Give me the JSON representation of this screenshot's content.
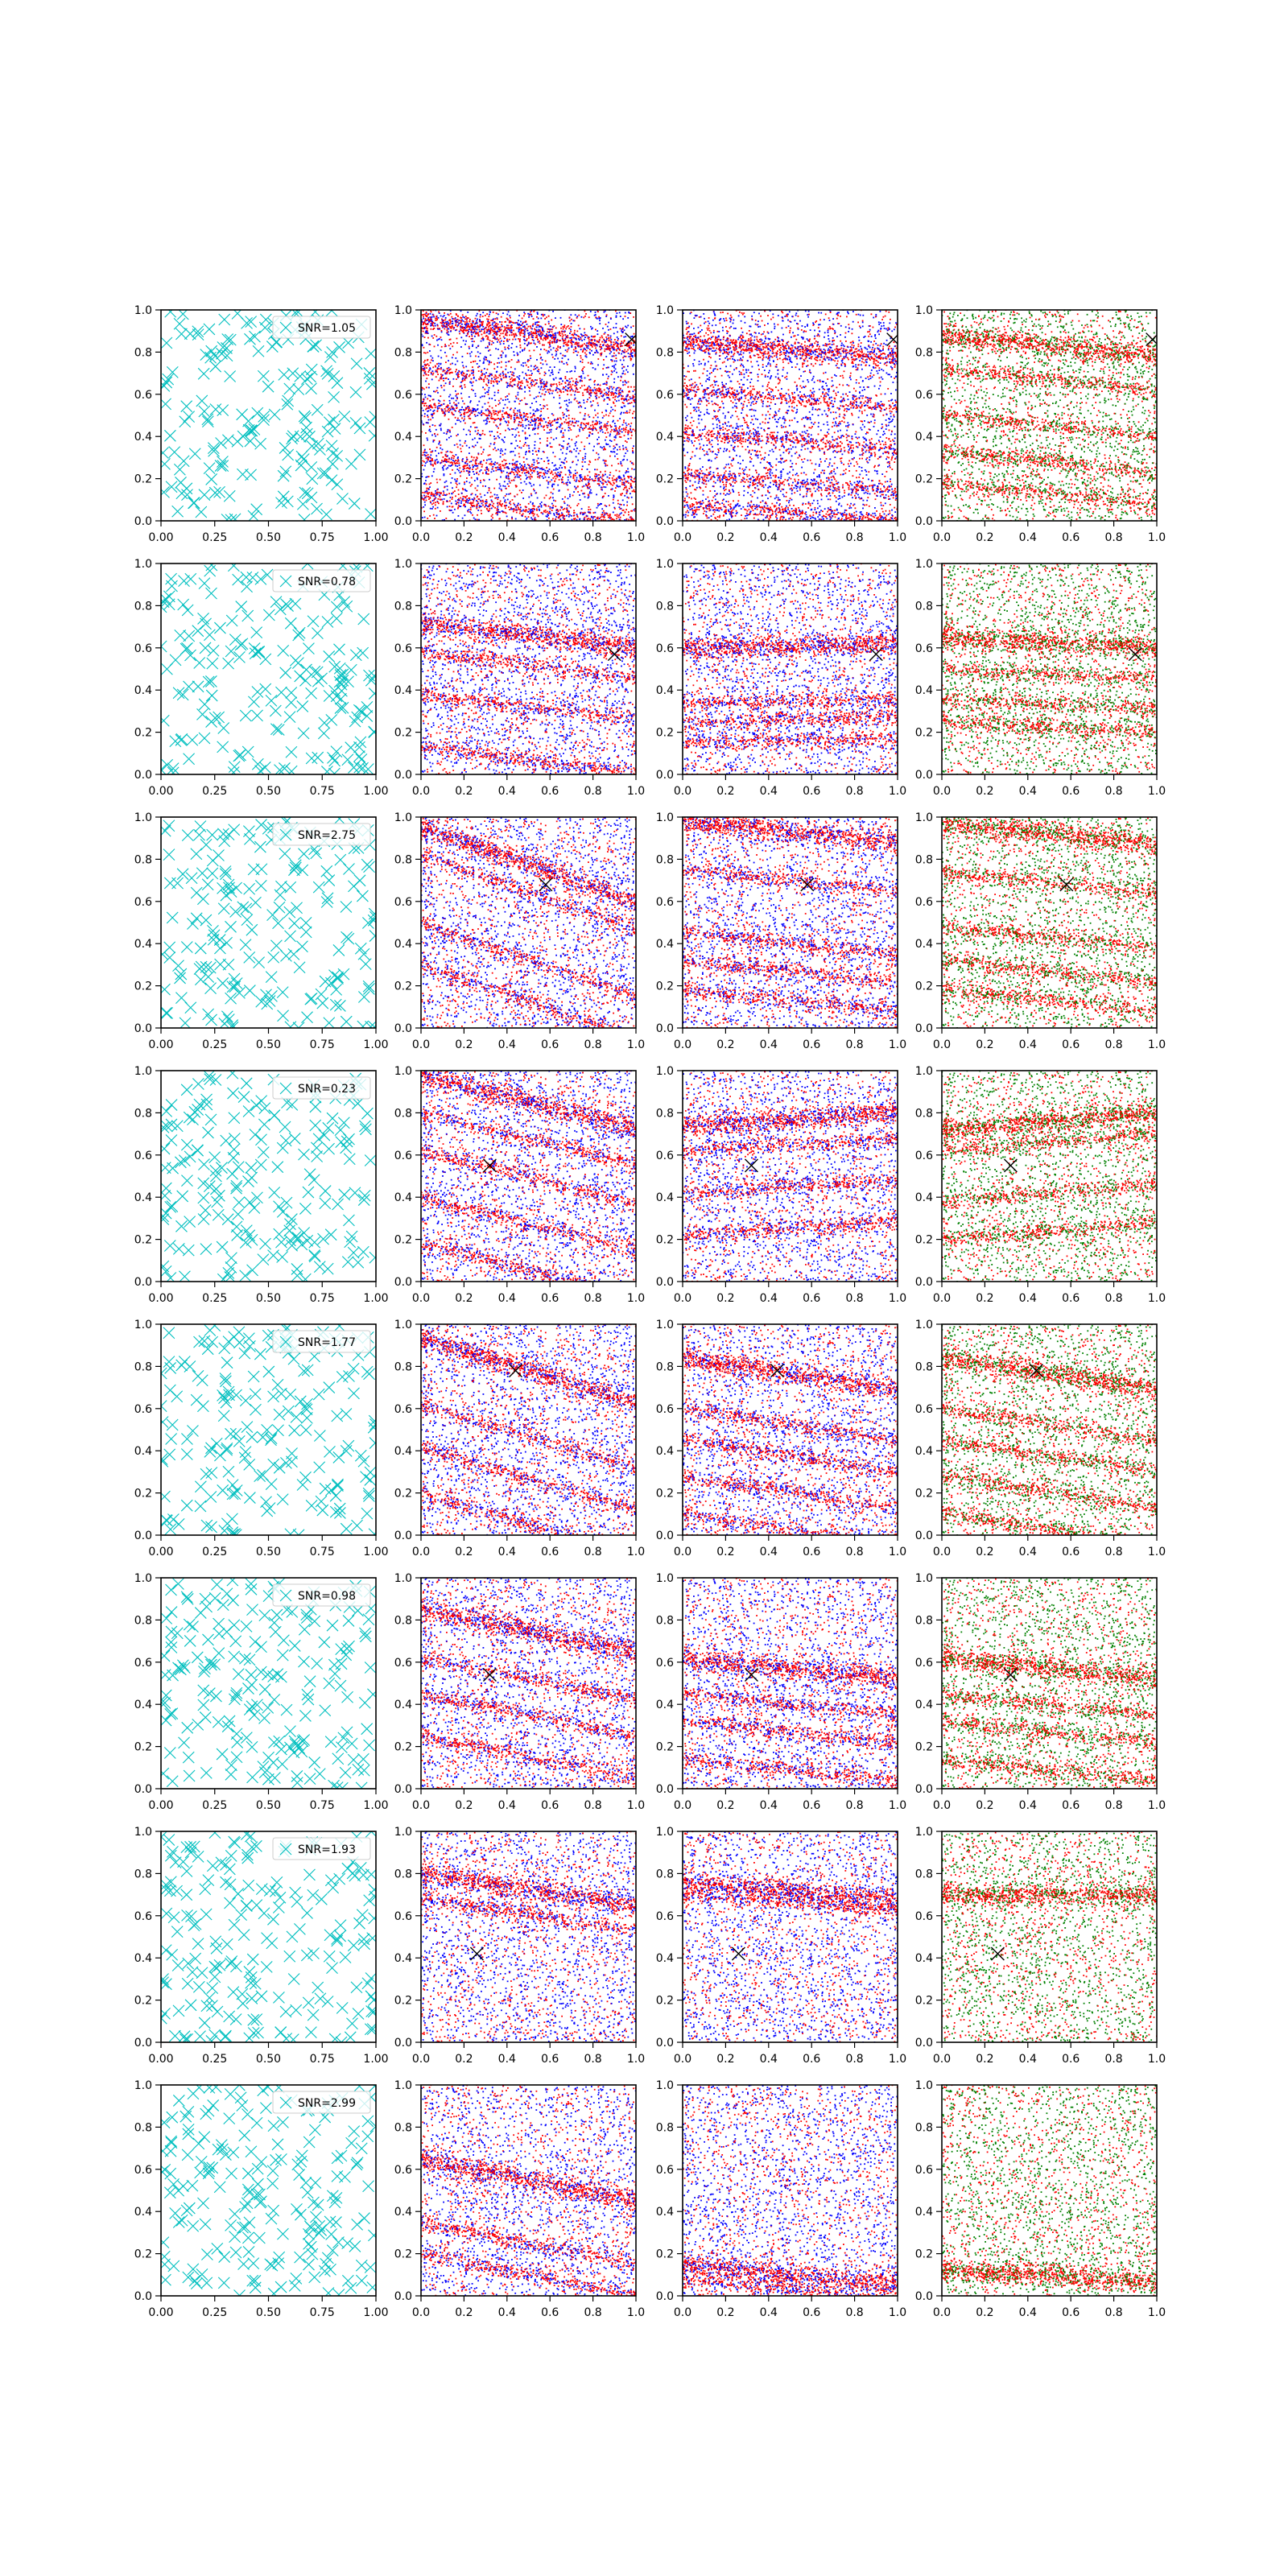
{
  "figure": {
    "rows": 8,
    "cols": 4
  },
  "colors": {
    "cyan": "#00bfbf",
    "red": "#ff0000",
    "blue": "#0000ff",
    "green": "#008000",
    "axes": "#000000",
    "background": "#ffffff"
  },
  "chart_data": [
    {
      "type": "scatter",
      "panel": "row1-col1",
      "marker": "x",
      "color": "cyan",
      "legend": "SNR=1.05",
      "legend_position": "upper right",
      "xlim": [
        0,
        1
      ],
      "ylim": [
        0,
        1
      ],
      "x_ticks": [
        "0.00",
        "0.25",
        "0.50",
        "0.75",
        "1.00"
      ],
      "y_ticks": [
        "0.0",
        "0.2",
        "0.4",
        "0.6",
        "0.8",
        "1.0"
      ],
      "points_count": 200
    },
    {
      "type": "scatter",
      "panel": "row1-col2",
      "colors": [
        "red",
        "blue"
      ],
      "marker_x": [
        0.98,
        0.86
      ],
      "xlim": [
        0,
        1
      ],
      "ylim": [
        0,
        1
      ],
      "x_ticks": [
        "0.0",
        "0.2",
        "0.4",
        "0.6",
        "0.8",
        "1.0"
      ],
      "y_ticks": [
        "0.0",
        "0.2",
        "0.4",
        "0.6",
        "0.8",
        "1.0"
      ],
      "band_slope": -0.13,
      "band_intercepts": [
        0.95,
        0.72,
        0.55,
        0.3,
        0.12
      ]
    },
    {
      "type": "scatter",
      "panel": "row1-col3",
      "colors": [
        "red",
        "blue"
      ],
      "marker_x": [
        0.98,
        0.86
      ],
      "xlim": [
        0,
        1
      ],
      "ylim": [
        0,
        1
      ],
      "x_ticks": [
        "0.0",
        "0.2",
        "0.4",
        "0.6",
        "0.8",
        "1.0"
      ],
      "y_ticks": [
        "0.0",
        "0.2",
        "0.4",
        "0.6",
        "0.8",
        "1.0"
      ],
      "band_slope": -0.08,
      "band_intercepts": [
        0.85,
        0.62,
        0.42,
        0.22,
        0.08
      ]
    },
    {
      "type": "scatter",
      "panel": "row1-col4",
      "colors": [
        "red",
        "green"
      ],
      "marker_x": [
        0.98,
        0.86
      ],
      "xlim": [
        0,
        1
      ],
      "ylim": [
        0,
        1
      ],
      "x_ticks": [
        "0.0",
        "0.2",
        "0.4",
        "0.6",
        "0.8",
        "1.0"
      ],
      "y_ticks": [
        "0.0",
        "0.2",
        "0.4",
        "0.6",
        "0.8",
        "1.0"
      ],
      "band_slope": -0.1,
      "band_intercepts": [
        0.88,
        0.72,
        0.5,
        0.33,
        0.18
      ]
    },
    {
      "type": "scatter",
      "panel": "row2-col1",
      "marker": "x",
      "color": "cyan",
      "legend": "SNR=0.78",
      "legend_position": "upper right",
      "xlim": [
        0,
        1
      ],
      "ylim": [
        0,
        1
      ],
      "x_ticks": [
        "0.00",
        "0.25",
        "0.50",
        "0.75",
        "1.00"
      ],
      "y_ticks": [
        "0.0",
        "0.2",
        "0.4",
        "0.6",
        "0.8",
        "1.0"
      ],
      "points_count": 200
    },
    {
      "type": "scatter",
      "panel": "row2-col2",
      "colors": [
        "red",
        "blue"
      ],
      "marker_x": [
        0.9,
        0.57
      ],
      "xlim": [
        0,
        1
      ],
      "ylim": [
        0,
        1
      ],
      "x_ticks": [
        "0.0",
        "0.2",
        "0.4",
        "0.6",
        "0.8",
        "1.0"
      ],
      "y_ticks": [
        "0.0",
        "0.2",
        "0.4",
        "0.6",
        "0.8",
        "1.0"
      ],
      "band_slope": -0.12,
      "band_intercepts": [
        0.72,
        0.58,
        0.38,
        0.13
      ]
    },
    {
      "type": "scatter",
      "panel": "row2-col3",
      "colors": [
        "red",
        "blue"
      ],
      "marker_x": [
        0.9,
        0.57
      ],
      "xlim": [
        0,
        1
      ],
      "ylim": [
        0,
        1
      ],
      "x_ticks": [
        "0.0",
        "0.2",
        "0.4",
        "0.6",
        "0.8",
        "1.0"
      ],
      "y_ticks": [
        "0.0",
        "0.2",
        "0.4",
        "0.6",
        "0.8",
        "1.0"
      ],
      "band_slope": 0.02,
      "band_intercepts": [
        0.6,
        0.34,
        0.25,
        0.15
      ]
    },
    {
      "type": "scatter",
      "panel": "row2-col4",
      "colors": [
        "red",
        "green"
      ],
      "marker_x": [
        0.9,
        0.57
      ],
      "xlim": [
        0,
        1
      ],
      "ylim": [
        0,
        1
      ],
      "x_ticks": [
        "0.0",
        "0.2",
        "0.4",
        "0.6",
        "0.8",
        "1.0"
      ],
      "y_ticks": [
        "0.0",
        "0.2",
        "0.4",
        "0.6",
        "0.8",
        "1.0"
      ],
      "band_slope": -0.05,
      "band_intercepts": [
        0.65,
        0.5,
        0.36,
        0.25
      ]
    },
    {
      "type": "scatter",
      "panel": "row3-col1",
      "marker": "x",
      "color": "cyan",
      "legend": "SNR=2.75",
      "legend_position": "upper right",
      "xlim": [
        0,
        1
      ],
      "ylim": [
        0,
        1
      ],
      "x_ticks": [
        "0.00",
        "0.25",
        "0.50",
        "0.75",
        "1.00"
      ],
      "y_ticks": [
        "0.0",
        "0.2",
        "0.4",
        "0.6",
        "0.8",
        "1.0"
      ],
      "points_count": 200
    },
    {
      "type": "scatter",
      "panel": "row3-col2",
      "colors": [
        "red",
        "blue"
      ],
      "marker_x": [
        0.58,
        0.68
      ],
      "xlim": [
        0,
        1
      ],
      "ylim": [
        0,
        1
      ],
      "x_ticks": [
        "0.0",
        "0.2",
        "0.4",
        "0.6",
        "0.8",
        "1.0"
      ],
      "y_ticks": [
        "0.0",
        "0.2",
        "0.4",
        "0.6",
        "0.8",
        "1.0"
      ],
      "band_slope": -0.35,
      "band_intercepts": [
        0.95,
        0.82,
        0.5,
        0.3
      ]
    },
    {
      "type": "scatter",
      "panel": "row3-col3",
      "colors": [
        "red",
        "blue"
      ],
      "marker_x": [
        0.58,
        0.68
      ],
      "xlim": [
        0,
        1
      ],
      "ylim": [
        0,
        1
      ],
      "x_ticks": [
        "0.0",
        "0.2",
        "0.4",
        "0.6",
        "0.8",
        "1.0"
      ],
      "y_ticks": [
        "0.0",
        "0.2",
        "0.4",
        "0.6",
        "0.8",
        "1.0"
      ],
      "band_slope": -0.1,
      "band_intercepts": [
        0.98,
        0.75,
        0.45,
        0.32,
        0.18
      ]
    },
    {
      "type": "scatter",
      "panel": "row3-col4",
      "colors": [
        "red",
        "green"
      ],
      "marker_x": [
        0.58,
        0.68
      ],
      "xlim": [
        0,
        1
      ],
      "ylim": [
        0,
        1
      ],
      "x_ticks": [
        "0.0",
        "0.2",
        "0.4",
        "0.6",
        "0.8",
        "1.0"
      ],
      "y_ticks": [
        "0.0",
        "0.2",
        "0.4",
        "0.6",
        "0.8",
        "1.0"
      ],
      "band_slope": -0.1,
      "band_intercepts": [
        0.97,
        0.74,
        0.48,
        0.32,
        0.18
      ]
    },
    {
      "type": "scatter",
      "panel": "row4-col1",
      "marker": "x",
      "color": "cyan",
      "legend": "SNR=0.23",
      "legend_position": "upper right",
      "xlim": [
        0,
        1
      ],
      "ylim": [
        0,
        1
      ],
      "x_ticks": [
        "0.00",
        "0.25",
        "0.50",
        "0.75",
        "1.00"
      ],
      "y_ticks": [
        "0.0",
        "0.2",
        "0.4",
        "0.6",
        "0.8",
        "1.0"
      ],
      "points_count": 200
    },
    {
      "type": "scatter",
      "panel": "row4-col2",
      "colors": [
        "red",
        "blue"
      ],
      "marker_x": [
        0.32,
        0.55
      ],
      "xlim": [
        0,
        1
      ],
      "ylim": [
        0,
        1
      ],
      "x_ticks": [
        "0.0",
        "0.2",
        "0.4",
        "0.6",
        "0.8",
        "1.0"
      ],
      "y_ticks": [
        "0.0",
        "0.2",
        "0.4",
        "0.6",
        "0.8",
        "1.0"
      ],
      "band_slope": -0.25,
      "band_intercepts": [
        0.98,
        0.8,
        0.62,
        0.4,
        0.18
      ]
    },
    {
      "type": "scatter",
      "panel": "row4-col3",
      "colors": [
        "red",
        "blue"
      ],
      "marker_x": [
        0.32,
        0.55
      ],
      "xlim": [
        0,
        1
      ],
      "ylim": [
        0,
        1
      ],
      "x_ticks": [
        "0.0",
        "0.2",
        "0.4",
        "0.6",
        "0.8",
        "1.0"
      ],
      "y_ticks": [
        "0.0",
        "0.2",
        "0.4",
        "0.6",
        "0.8",
        "1.0"
      ],
      "band_slope": 0.06,
      "band_intercepts": [
        0.74,
        0.62,
        0.42,
        0.22
      ]
    },
    {
      "type": "scatter",
      "panel": "row4-col4",
      "colors": [
        "red",
        "green"
      ],
      "marker_x": [
        0.32,
        0.55
      ],
      "xlim": [
        0,
        1
      ],
      "ylim": [
        0,
        1
      ],
      "x_ticks": [
        "0.0",
        "0.2",
        "0.4",
        "0.6",
        "0.8",
        "1.0"
      ],
      "y_ticks": [
        "0.0",
        "0.2",
        "0.4",
        "0.6",
        "0.8",
        "1.0"
      ],
      "band_slope": 0.08,
      "band_intercepts": [
        0.72,
        0.62,
        0.38,
        0.2
      ]
    },
    {
      "type": "scatter",
      "panel": "row5-col1",
      "marker": "x",
      "color": "cyan",
      "legend": "SNR=1.77",
      "legend_position": "upper right",
      "xlim": [
        0,
        1
      ],
      "ylim": [
        0,
        1
      ],
      "x_ticks": [
        "0.00",
        "0.25",
        "0.50",
        "0.75",
        "1.00"
      ],
      "y_ticks": [
        "0.0",
        "0.2",
        "0.4",
        "0.6",
        "0.8",
        "1.0"
      ],
      "points_count": 200
    },
    {
      "type": "scatter",
      "panel": "row5-col2",
      "colors": [
        "red",
        "blue"
      ],
      "marker_x": [
        0.44,
        0.78
      ],
      "xlim": [
        0,
        1
      ],
      "ylim": [
        0,
        1
      ],
      "x_ticks": [
        "0.0",
        "0.2",
        "0.4",
        "0.6",
        "0.8",
        "1.0"
      ],
      "y_ticks": [
        "0.0",
        "0.2",
        "0.4",
        "0.6",
        "0.8",
        "1.0"
      ],
      "band_slope": -0.3,
      "band_intercepts": [
        0.93,
        0.62,
        0.42,
        0.2
      ]
    },
    {
      "type": "scatter",
      "panel": "row5-col3",
      "colors": [
        "red",
        "blue"
      ],
      "marker_x": [
        0.44,
        0.78
      ],
      "xlim": [
        0,
        1
      ],
      "ylim": [
        0,
        1
      ],
      "x_ticks": [
        "0.0",
        "0.2",
        "0.4",
        "0.6",
        "0.8",
        "1.0"
      ],
      "y_ticks": [
        "0.0",
        "0.2",
        "0.4",
        "0.6",
        "0.8",
        "1.0"
      ],
      "band_slope": -0.15,
      "band_intercepts": [
        0.84,
        0.6,
        0.45,
        0.28,
        0.1
      ]
    },
    {
      "type": "scatter",
      "panel": "row5-col4",
      "colors": [
        "red",
        "green"
      ],
      "marker_x": [
        0.44,
        0.78
      ],
      "xlim": [
        0,
        1
      ],
      "ylim": [
        0,
        1
      ],
      "x_ticks": [
        "0.0",
        "0.2",
        "0.4",
        "0.6",
        "0.8",
        "1.0"
      ],
      "y_ticks": [
        "0.0",
        "0.2",
        "0.4",
        "0.6",
        "0.8",
        "1.0"
      ],
      "band_slope": -0.15,
      "band_intercepts": [
        0.84,
        0.6,
        0.45,
        0.28,
        0.1
      ]
    },
    {
      "type": "scatter",
      "panel": "row6-col1",
      "marker": "x",
      "color": "cyan",
      "legend": "SNR=0.98",
      "legend_position": "upper right",
      "xlim": [
        0,
        1
      ],
      "ylim": [
        0,
        1
      ],
      "x_ticks": [
        "0.00",
        "0.25",
        "0.50",
        "0.75",
        "1.00"
      ],
      "y_ticks": [
        "0.0",
        "0.2",
        "0.4",
        "0.6",
        "0.8",
        "1.0"
      ],
      "points_count": 200
    },
    {
      "type": "scatter",
      "panel": "row6-col2",
      "colors": [
        "red",
        "blue"
      ],
      "marker_x": [
        0.32,
        0.54
      ],
      "xlim": [
        0,
        1
      ],
      "ylim": [
        0,
        1
      ],
      "x_ticks": [
        "0.0",
        "0.2",
        "0.4",
        "0.6",
        "0.8",
        "1.0"
      ],
      "y_ticks": [
        "0.0",
        "0.2",
        "0.4",
        "0.6",
        "0.8",
        "1.0"
      ],
      "band_slope": -0.2,
      "band_intercepts": [
        0.85,
        0.62,
        0.45,
        0.25
      ]
    },
    {
      "type": "scatter",
      "panel": "row6-col3",
      "colors": [
        "red",
        "blue"
      ],
      "marker_x": [
        0.32,
        0.54
      ],
      "xlim": [
        0,
        1
      ],
      "ylim": [
        0,
        1
      ],
      "x_ticks": [
        "0.0",
        "0.2",
        "0.4",
        "0.6",
        "0.8",
        "1.0"
      ],
      "y_ticks": [
        "0.0",
        "0.2",
        "0.4",
        "0.6",
        "0.8",
        "1.0"
      ],
      "band_slope": -0.1,
      "band_intercepts": [
        0.62,
        0.45,
        0.32,
        0.14
      ]
    },
    {
      "type": "scatter",
      "panel": "row6-col4",
      "colors": [
        "red",
        "green"
      ],
      "marker_x": [
        0.32,
        0.54
      ],
      "xlim": [
        0,
        1
      ],
      "ylim": [
        0,
        1
      ],
      "x_ticks": [
        "0.0",
        "0.2",
        "0.4",
        "0.6",
        "0.8",
        "1.0"
      ],
      "y_ticks": [
        "0.0",
        "0.2",
        "0.4",
        "0.6",
        "0.8",
        "1.0"
      ],
      "band_slope": -0.1,
      "band_intercepts": [
        0.62,
        0.45,
        0.32,
        0.14
      ]
    },
    {
      "type": "scatter",
      "panel": "row7-col1",
      "marker": "x",
      "color": "cyan",
      "legend": "SNR=1.93",
      "legend_position": "upper right",
      "xlim": [
        0,
        1
      ],
      "ylim": [
        0,
        1
      ],
      "x_ticks": [
        "0.00",
        "0.25",
        "0.50",
        "0.75",
        "1.00"
      ],
      "y_ticks": [
        "0.0",
        "0.2",
        "0.4",
        "0.6",
        "0.8",
        "1.0"
      ],
      "points_count": 200
    },
    {
      "type": "scatter",
      "panel": "row7-col2",
      "colors": [
        "red",
        "blue"
      ],
      "marker_x": [
        0.26,
        0.42
      ],
      "xlim": [
        0,
        1
      ],
      "ylim": [
        0,
        1
      ],
      "x_ticks": [
        "0.0",
        "0.2",
        "0.4",
        "0.6",
        "0.8",
        "1.0"
      ],
      "y_ticks": [
        "0.0",
        "0.2",
        "0.4",
        "0.6",
        "0.8",
        "1.0"
      ],
      "band_slope": -0.15,
      "band_intercepts": [
        0.8,
        0.68
      ]
    },
    {
      "type": "scatter",
      "panel": "row7-col3",
      "colors": [
        "red",
        "blue"
      ],
      "marker_x": [
        0.26,
        0.42
      ],
      "xlim": [
        0,
        1
      ],
      "ylim": [
        0,
        1
      ],
      "x_ticks": [
        "0.0",
        "0.2",
        "0.4",
        "0.6",
        "0.8",
        "1.0"
      ],
      "y_ticks": [
        "0.0",
        "0.2",
        "0.4",
        "0.6",
        "0.8",
        "1.0"
      ],
      "band_slope": -0.08,
      "band_intercepts": [
        0.76,
        0.7
      ]
    },
    {
      "type": "scatter",
      "panel": "row7-col4",
      "colors": [
        "red",
        "green"
      ],
      "marker_x": [
        0.26,
        0.42
      ],
      "xlim": [
        0,
        1
      ],
      "ylim": [
        0,
        1
      ],
      "x_ticks": [
        "0.0",
        "0.2",
        "0.4",
        "0.6",
        "0.8",
        "1.0"
      ],
      "y_ticks": [
        "0.0",
        "0.2",
        "0.4",
        "0.6",
        "0.8",
        "1.0"
      ],
      "band_slope": 0.0,
      "band_intercepts": [
        0.7
      ]
    },
    {
      "type": "scatter",
      "panel": "row8-col1",
      "marker": "x",
      "color": "cyan",
      "legend": "SNR=2.99",
      "legend_position": "upper right",
      "xlim": [
        0,
        1
      ],
      "ylim": [
        0,
        1
      ],
      "x_ticks": [
        "0.00",
        "0.25",
        "0.50",
        "0.75",
        "1.00"
      ],
      "y_ticks": [
        "0.0",
        "0.2",
        "0.4",
        "0.6",
        "0.8",
        "1.0"
      ],
      "points_count": 200
    },
    {
      "type": "scatter",
      "panel": "row8-col2",
      "colors": [
        "red",
        "blue"
      ],
      "xlim": [
        0,
        1
      ],
      "ylim": [
        0,
        1
      ],
      "x_ticks": [
        "0.0",
        "0.2",
        "0.4",
        "0.6",
        "0.8",
        "1.0"
      ],
      "y_ticks": [
        "0.0",
        "0.2",
        "0.4",
        "0.6",
        "0.8",
        "1.0"
      ],
      "band_slope": -0.2,
      "band_intercepts": [
        0.65,
        0.35,
        0.2
      ]
    },
    {
      "type": "scatter",
      "panel": "row8-col3",
      "colors": [
        "red",
        "blue"
      ],
      "xlim": [
        0,
        1
      ],
      "ylim": [
        0,
        1
      ],
      "x_ticks": [
        "0.0",
        "0.2",
        "0.4",
        "0.6",
        "0.8",
        "1.0"
      ],
      "y_ticks": [
        "0.0",
        "0.2",
        "0.4",
        "0.6",
        "0.8",
        "1.0"
      ],
      "band_slope": -0.1,
      "band_intercepts": [
        0.15,
        0.08
      ]
    },
    {
      "type": "scatter",
      "panel": "row8-col4",
      "colors": [
        "red",
        "green"
      ],
      "xlim": [
        0,
        1
      ],
      "ylim": [
        0,
        1
      ],
      "x_ticks": [
        "0.0",
        "0.2",
        "0.4",
        "0.6",
        "0.8",
        "1.0"
      ],
      "y_ticks": [
        "0.0",
        "0.2",
        "0.4",
        "0.6",
        "0.8",
        "1.0"
      ],
      "band_slope": -0.05,
      "band_intercepts": [
        0.12
      ]
    }
  ]
}
